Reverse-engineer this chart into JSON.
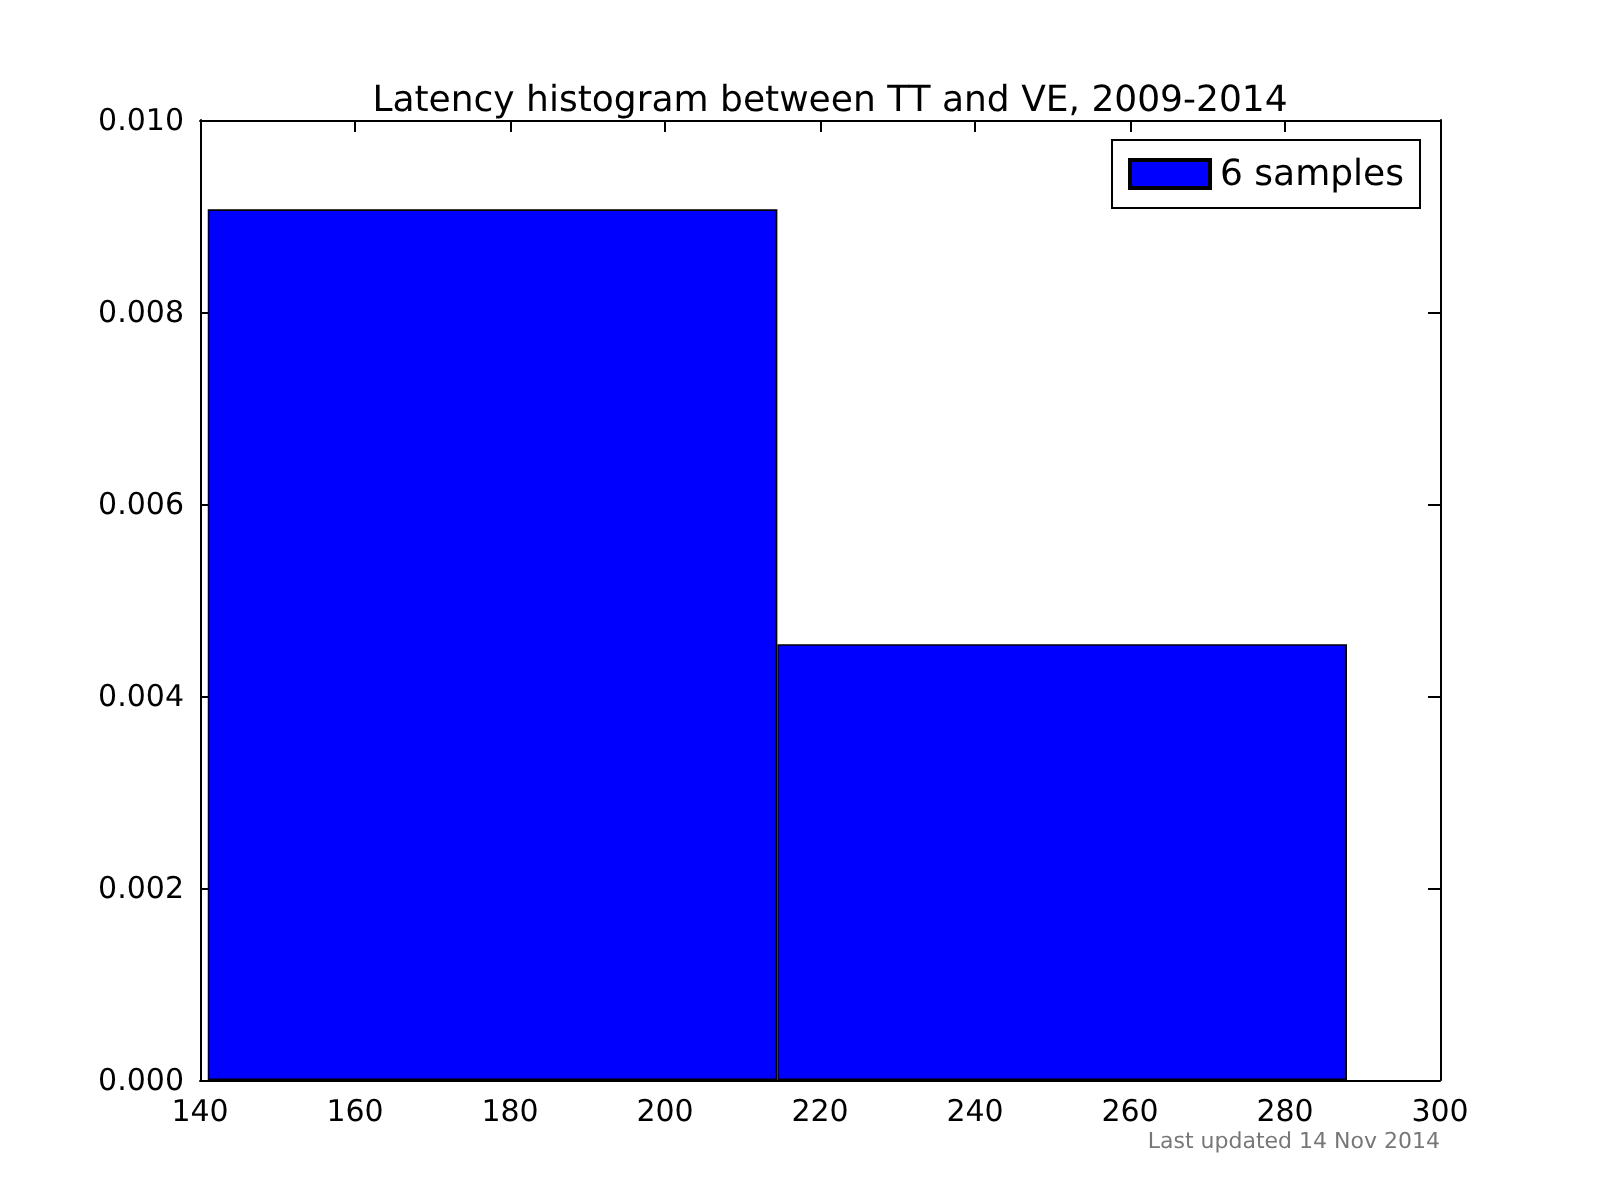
{
  "chart_data": {
    "type": "histogram",
    "title": "Latency histogram between TT and VE, 2009-2014",
    "bins": [
      141,
      214.5,
      288
    ],
    "series": [
      {
        "name": "6 samples",
        "color": "#0000ff",
        "values": [
          0.00907,
          0.00454
        ]
      }
    ],
    "xlim": [
      140,
      300
    ],
    "xticks": [
      140,
      160,
      180,
      200,
      220,
      240,
      260,
      280,
      300
    ],
    "ylim": [
      0,
      0.01
    ],
    "yticks": [
      {
        "value": 0,
        "label": "0.000"
      },
      0.002,
      0.004,
      0.006,
      0.008,
      {
        "value": 0.01,
        "label": "0.010"
      }
    ],
    "grid": false,
    "legend": "top right",
    "annotations": [
      "Last updated 14 Nov 2014"
    ]
  }
}
